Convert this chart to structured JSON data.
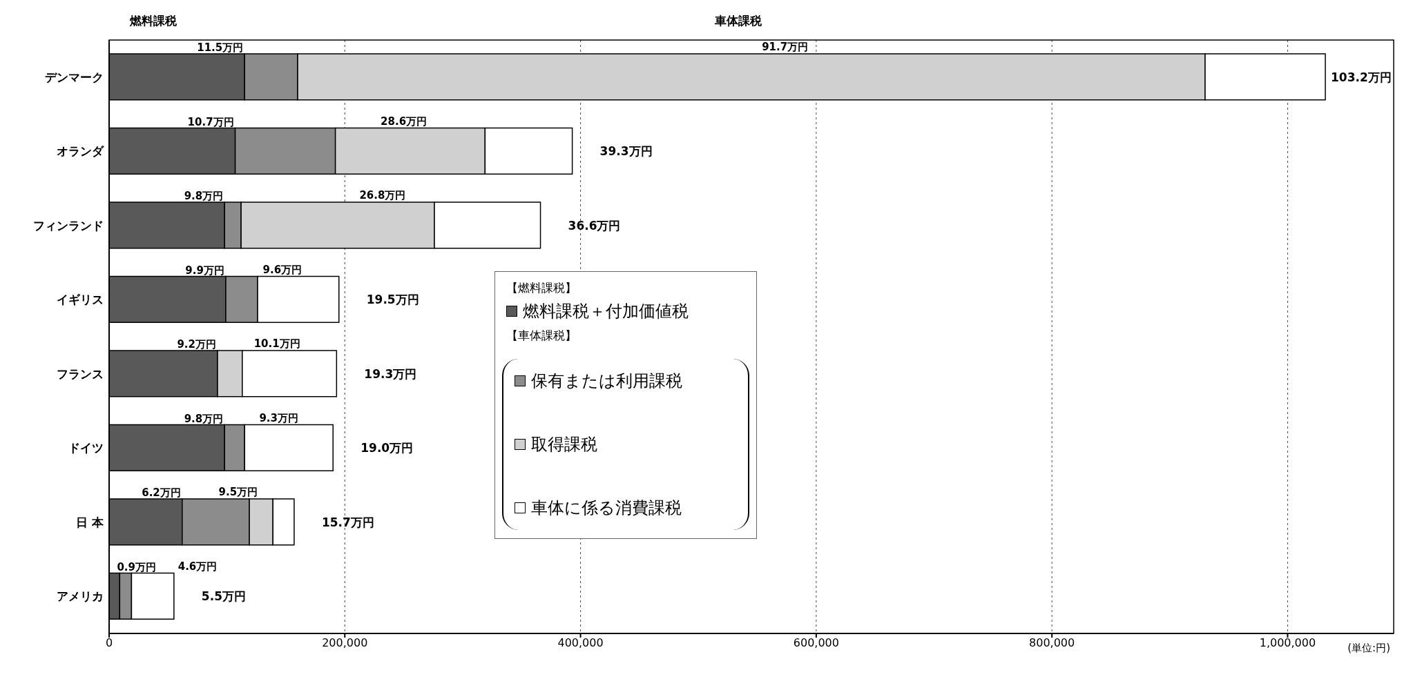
{
  "chart_data": {
    "type": "bar",
    "orientation": "horizontal",
    "stacked": true,
    "xlabel": "(単位:円)",
    "categories": [
      "デンマーク",
      "オランダ",
      "フィンランド",
      "イギリス",
      "フランス",
      "ドイツ",
      "日 本",
      "アメリカ"
    ],
    "series": [
      {
        "name": "燃料課税＋付加価値税",
        "color": "#595959",
        "values": [
          115000,
          107000,
          98000,
          99000,
          92000,
          98000,
          62000,
          9000
        ]
      },
      {
        "name": "保有または利用課税",
        "color": "#8c8c8c",
        "values": [
          45000,
          85000,
          14000,
          27000,
          0,
          17000,
          57000,
          10000
        ]
      },
      {
        "name": "取得課税",
        "color": "#d0d0d0",
        "values": [
          770000,
          127000,
          164000,
          0,
          21000,
          0,
          20000,
          0
        ]
      },
      {
        "name": "車体に係る消費課税",
        "color": "#ffffff",
        "values": [
          102000,
          74000,
          90000,
          69000,
          80000,
          75000,
          18000,
          36000
        ]
      }
    ],
    "annotations": [
      "燃料課税",
      "車体課税",
      "【燃料課税】",
      "【車体課税】",
      "91.7万円",
      "28.6万円",
      "26.8万円",
      "9.6万円",
      "10.1万円",
      "9.3万円",
      "9.5万円",
      "4.6万円",
      {
        "text": "11.5万円",
        "x": 115000,
        "y": "デンマーク"
      },
      {
        "text": "10.7万円",
        "x": 107000,
        "y": "オランダ"
      },
      {
        "text": "9.8万円",
        "x": 98000,
        "y": "フィンランド"
      },
      {
        "text": "9.9万円",
        "x": 99000,
        "y": "イギリス"
      },
      {
        "text": "9.2万円",
        "x": 92000,
        "y": "フランス"
      },
      {
        "text": "9.8万円",
        "x": 98000,
        "y": "ドイツ"
      },
      {
        "text": "6.2万円",
        "x": 62000,
        "y": "日 本"
      },
      {
        "text": "0.9万円",
        "x": 9000,
        "y": "アメリカ"
      },
      {
        "text": "103.2万円",
        "x": 1032000,
        "y": "デンマーク"
      },
      {
        "text": "39.3万円",
        "x": 393000,
        "y": "オランダ"
      },
      {
        "text": "36.6万円",
        "x": 366000,
        "y": "フィンランド"
      },
      {
        "text": "19.5万円",
        "x": 195000,
        "y": "イギリス"
      },
      {
        "text": "19.3万円",
        "x": 193000,
        "y": "フランス"
      },
      {
        "text": "19.0万円",
        "x": 190000,
        "y": "ドイツ"
      },
      {
        "text": "15.7万円",
        "x": 157000,
        "y": "日 本"
      },
      {
        "text": "5.5万円",
        "x": 55000,
        "y": "アメリカ"
      }
    ],
    "xlim": [
      0,
      1090000
    ],
    "xticks": [
      0,
      {
        "value": 200000,
        "label": "200,000"
      },
      {
        "value": 400000,
        "label": "400,000"
      },
      {
        "value": 600000,
        "label": "600,000"
      },
      {
        "value": 800000,
        "label": "800,000"
      },
      {
        "value": 1000000,
        "label": "1,000,000"
      }
    ],
    "grid": "x",
    "legend": "center"
  }
}
